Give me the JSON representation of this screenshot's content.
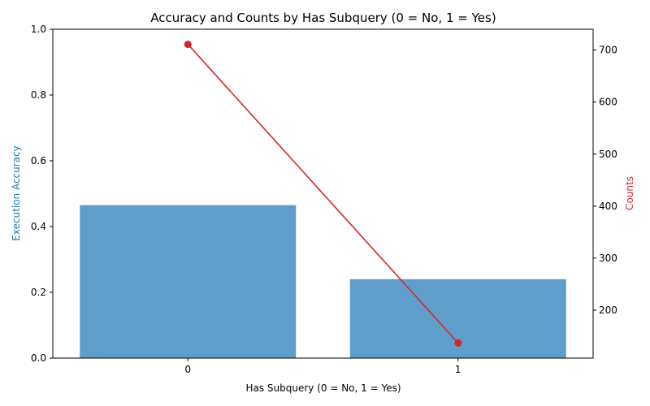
{
  "chart_data": {
    "type": "bar",
    "title": "Accuracy and Counts by Has Subquery (0 = No, 1 = Yes)",
    "xlabel": "Has Subquery (0 = No, 1 = Yes)",
    "categories": [
      "0",
      "1"
    ],
    "bar_series": {
      "ylabel": "Execution Accuracy",
      "values": [
        0.465,
        0.24
      ],
      "color": "#5f9ecb",
      "ylim": [
        0,
        1.0
      ],
      "yticks": [
        "0.0",
        "0.2",
        "0.4",
        "0.6",
        "0.8",
        "1.0"
      ]
    },
    "line_series": {
      "ylabel": "Counts",
      "values": [
        711,
        137
      ],
      "color": "#d62728",
      "ylim": [
        108,
        740
      ],
      "yticks": [
        "200",
        "300",
        "400",
        "500",
        "600",
        "700"
      ]
    },
    "ylabel_left_color": "#1f77b4",
    "ylabel_right_color": "#d62728",
    "grid": false
  }
}
